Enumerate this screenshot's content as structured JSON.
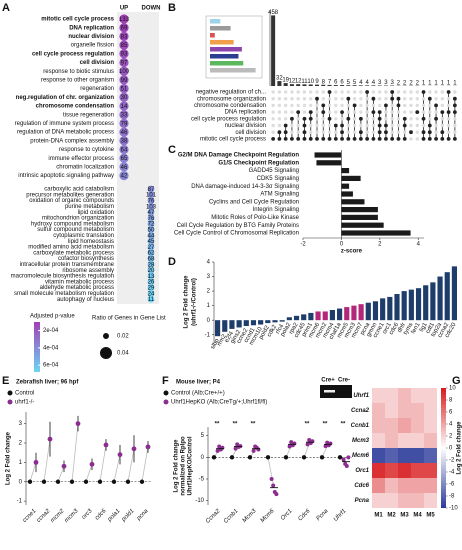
{
  "chart_data": [
    {
      "panel": "A",
      "type": "dotplot",
      "columns": [
        "UP",
        "DOWN"
      ],
      "terms": [
        "mitotic cell cycle process",
        "DNA replication",
        "nuclear division",
        "organelle fission",
        "cell cycle process regulation",
        "cell division",
        "response to biotic stimulus",
        "response to other organism",
        "regeneration",
        "neg.regulation of chr. organization",
        "chromosome condensation",
        "tissue regeneration",
        "regulation of immune system process",
        "regulation of DNA metabolic process",
        "protein-DNA complex assembly",
        "response to cytokine",
        "immune effector process",
        "chromatin localization",
        "intrinsic apoptotic signaling pathway",
        "carboxylic acid catabolism",
        "precursor metabolites generation",
        "oxidation of organic compounds",
        "purine metabolism",
        "lipid oxidation",
        "mitochondrion organization",
        "hydroxy compound metabolism",
        "sulfur compound metabolism",
        "cytoplasmic translation",
        "lipid homeostasis",
        "modified amino acid metabolism",
        "carboxylate metabolic process",
        "cofactor biosynthesis",
        "intracellular protein transmembrane",
        "ribosome assembly",
        "macromolecule biosynthesis regulation",
        "vitamin metabolic process",
        "aldehyde metabolic process",
        "small molecule metabolism regulation",
        "autophagy of nucleus"
      ],
      "column_index": [
        0,
        0,
        0,
        0,
        0,
        0,
        0,
        0,
        0,
        0,
        0,
        0,
        0,
        0,
        0,
        0,
        0,
        0,
        0,
        1,
        1,
        1,
        1,
        1,
        1,
        1,
        1,
        1,
        1,
        1,
        1,
        1,
        1,
        1,
        1,
        1,
        1,
        1,
        1
      ],
      "values": [
        133,
        69,
        83,
        85,
        93,
        97,
        100,
        99,
        51,
        30,
        14,
        33,
        79,
        46,
        38,
        64,
        65,
        46,
        42,
        87,
        101,
        76,
        103,
        47,
        76,
        72,
        50,
        44,
        45,
        27,
        62,
        68,
        28,
        20,
        13,
        26,
        29,
        24,
        11
      ],
      "bold": [
        true,
        true,
        true,
        false,
        true,
        true,
        false,
        false,
        false,
        true,
        true,
        false,
        false,
        false,
        false,
        false,
        false,
        false,
        false,
        false,
        false,
        false,
        false,
        false,
        false,
        false,
        false,
        false,
        false,
        false,
        false,
        false,
        false,
        false,
        false,
        false,
        false,
        false,
        false
      ],
      "color_range": [
        "#a23fb8",
        "#6ad6f5"
      ],
      "legend_color_title": "Adjusted p-value",
      "clim": [
        0.0001,
        0.00068
      ],
      "legend_color_ticks": [
        {
          "value": 0.0002,
          "label": "2e-04"
        },
        {
          "value": 0.0004,
          "label": "4e-04"
        },
        {
          "value": 0.0006,
          "label": "6e-04"
        }
      ],
      "legend_size_title": "Ratio of Genes in Gene List",
      "legend_size_ticks": [
        0.02,
        0.04
      ]
    },
    {
      "panel": "B",
      "type": "upset",
      "sets": [
        "negative regulation of ch...",
        "chromosome organization",
        "chromosome condensation",
        "DNA replication",
        "cell cycle process regulation",
        "nuclear division",
        "cell division",
        "mitotic cell cycle process"
      ],
      "set_colors": [
        "#9fd3ea",
        "#9a9a9a",
        "#d9534f",
        "#f0a04b",
        "#8e44ad",
        "#2c3e8f",
        "#5cb85c",
        "#bbbbbb"
      ],
      "set_sizes": [
        30,
        60,
        14,
        69,
        93,
        83,
        97,
        133
      ],
      "set_size_lim": [
        0,
        140
      ],
      "values": [
        458,
        32,
        19,
        12,
        12,
        11,
        10,
        9,
        8,
        7,
        6,
        6,
        5,
        5,
        4,
        4,
        4,
        3,
        3,
        3,
        2,
        2,
        2,
        2,
        1,
        1,
        1,
        1,
        1,
        1
      ],
      "ylim": [
        0,
        480
      ],
      "membership": [
        [
          7
        ],
        [
          6,
          7
        ],
        [
          5,
          6,
          7
        ],
        [
          4,
          7
        ],
        [
          3,
          7
        ],
        [
          4,
          5,
          6,
          7
        ],
        [
          3,
          4,
          7
        ],
        [
          1,
          7
        ],
        [
          2,
          3,
          7
        ],
        [
          0,
          4,
          7
        ],
        [
          5,
          7
        ],
        [
          3,
          5,
          6,
          7
        ],
        [
          1,
          4,
          7
        ],
        [
          2,
          7
        ],
        [
          4,
          6,
          7
        ],
        [
          0,
          7
        ],
        [
          1,
          3,
          7
        ],
        [
          3,
          4,
          5,
          6,
          7
        ],
        [
          2,
          5,
          6,
          7
        ],
        [
          0,
          1,
          7
        ],
        [
          1,
          2,
          7
        ],
        [
          4,
          5,
          7
        ],
        [
          6
        ],
        [
          3
        ],
        [
          0,
          4,
          6,
          7
        ],
        [
          1,
          5,
          6,
          7
        ],
        [
          2,
          4,
          7
        ],
        [
          3,
          6,
          7
        ],
        [
          0,
          3,
          7
        ],
        [
          1,
          2,
          3,
          7
        ]
      ]
    },
    {
      "panel": "C",
      "type": "bar",
      "orientation": "horizontal",
      "categories": [
        "G2/M DNA Damage Checkpoint Regulation",
        "G1/S Checkpoint Regulation",
        "GADD45 Signaling",
        "CDK5 Signaling",
        "DNA damage-induced 14-3-3σ Signaling",
        "ATM Signaling",
        "Cyclins and Cell Cycle Regulation",
        "Integrin Signaling",
        "Mitotic Roles of Polo-Like Kinase",
        "Cell Cycle Regulation by BTG Family Proteins",
        "Cell Cycle Control of Chromosomal Replication"
      ],
      "bold": [
        true,
        true,
        false,
        false,
        false,
        false,
        false,
        false,
        false,
        false,
        false
      ],
      "values": [
        -1.4,
        -1.3,
        0.4,
        1.0,
        0.4,
        0.6,
        1.2,
        1.9,
        1.9,
        2.2,
        3.6
      ],
      "color": "#1a1a1a",
      "xlim": [
        -2,
        4.3
      ],
      "xticks": [
        -2,
        0,
        2,
        4
      ],
      "xlabel": "z-score"
    },
    {
      "panel": "D",
      "type": "bar",
      "ylabel": [
        "Log 2 Fold change",
        "(uhrf1-/-/Control)"
      ],
      "categories": [
        "slbp",
        "rrm2",
        "e2f4",
        "gins2",
        "ccne2",
        "ccnd1",
        "mcm10",
        "pold2",
        "cdk2",
        "rfc4",
        "pola2",
        "rpa2",
        "cdc45",
        "prim1",
        "mcm6",
        "mcm2",
        "mcm4",
        "chaf1a",
        "mcm5",
        "mcm3",
        "mcm7",
        "pcna",
        "gmnn",
        "ccne1",
        "orc1",
        "cdc6",
        "dhfr",
        "tyms",
        "fen1",
        "lig1",
        "cdt1",
        "top2a",
        "ccna2",
        "cdc20"
      ],
      "values": [
        -1.1,
        -0.8,
        -0.6,
        -0.5,
        -0.4,
        -0.35,
        -0.3,
        -0.2,
        -0.15,
        -0.1,
        0.2,
        0.3,
        0.4,
        0.5,
        0.6,
        0.6,
        0.7,
        0.8,
        0.9,
        1.0,
        1.1,
        1.2,
        1.3,
        1.5,
        1.6,
        1.8,
        2.0,
        2.1,
        2.2,
        2.4,
        2.6,
        3.0,
        3.3,
        3.7
      ],
      "colors": [
        "#1f3d6b",
        "#1f3d6b",
        "#1f3d6b",
        "#1f3d6b",
        "#1f3d6b",
        "#1f3d6b",
        "#1f3d6b",
        "#1f3d6b",
        "#1f3d6b",
        "#1f3d6b",
        "#1f3d6b",
        "#1f3d6b",
        "#1f3d6b",
        "#1f3d6b",
        "#b3277a",
        "#b3277a",
        "#1f3d6b",
        "#1f3d6b",
        "#b3277a",
        "#b3277a",
        "#b3277a",
        "#1f3d6b",
        "#1f3d6b",
        "#1f3d6b",
        "#1f3d6b",
        "#1f3d6b",
        "#1f3d6b",
        "#1f3d6b",
        "#1f3d6b",
        "#1f3d6b",
        "#1f3d6b",
        "#1f3d6b",
        "#1f3d6b",
        "#1f3d6b"
      ],
      "ylim": [
        -1.5,
        4
      ],
      "yticks": [
        -1,
        0,
        1,
        2,
        3,
        4
      ]
    },
    {
      "panel": "E",
      "type": "dot",
      "title": "Zebrafish liver; 96 hpf",
      "ylabel": [
        "Log 2 Fold change"
      ],
      "categories": [
        "ccne1",
        "ccna2",
        "mcm2",
        "mcm3",
        "orc3",
        "cdc6",
        "pola1",
        "pold1",
        "pcna"
      ],
      "series": [
        {
          "name": "Control",
          "color": "#111111",
          "values": [
            0,
            0,
            0,
            0,
            0,
            0,
            0,
            0,
            0
          ]
        },
        {
          "name": "uhrf1-/-",
          "color": "#8b2e8f",
          "values": [
            1.0,
            2.2,
            0.8,
            3.0,
            0.9,
            1.9,
            1.4,
            1.7,
            1.8
          ],
          "errors": [
            0.5,
            0.9,
            0.3,
            0.4,
            0.3,
            0.3,
            0.5,
            0.7,
            0.3
          ]
        }
      ],
      "ylim": [
        -1.2,
        3.6
      ],
      "yticks": [
        -1,
        0,
        1,
        2,
        3
      ]
    },
    {
      "panel": "F",
      "type": "dot",
      "title": "Mouse liver; P4",
      "inset_labels": [
        "Cre+",
        "Cre-"
      ],
      "ylabel": [
        "Log 2 Fold change",
        "normalized on Rplpo",
        "Uhrf1HepKO/Control"
      ],
      "categories": [
        "Ccna2",
        "Ccnb1",
        "Mcm3",
        "Mcm6",
        "Orc1",
        "Cdc6",
        "Pcna",
        "Uhrf1"
      ],
      "series": [
        {
          "name": "Control (Alb;Cre+/+)",
          "color": "#111111",
          "values": [
            0,
            0,
            0,
            0,
            0,
            0,
            0,
            0
          ]
        },
        {
          "name": "Uhrf1HepKO (Alb;CreTg/+;Uhrf1fl/fl)",
          "color": "#8b2e8f",
          "values": [
            2,
            2.5,
            2,
            -7,
            3,
            3.5,
            3,
            -1
          ],
          "points": [
            [
              1.5,
              2.5,
              1.8,
              2.2
            ],
            [
              2,
              3,
              2.4,
              2.6
            ],
            [
              1.5,
              2.5,
              2.2,
              1.8
            ],
            [
              -5,
              -6.5,
              -8,
              -8.5
            ],
            [
              2.5,
              3.5,
              2.8,
              3.2
            ],
            [
              3,
              4,
              3.3,
              3.7
            ],
            [
              2.6,
              3.4,
              2.8,
              3.2
            ],
            [
              -0.5,
              -1.5,
              -2,
              0
            ]
          ]
        }
      ],
      "significance": [
        "**",
        "**",
        "**",
        null,
        null,
        "**",
        "**",
        "**"
      ],
      "ylim": [
        -11,
        7
      ],
      "yticks": [
        -10,
        -5,
        0,
        5
      ]
    },
    {
      "panel": "G",
      "type": "heatmap",
      "rows": [
        "Uhrf1",
        "Ccna2",
        "Ccnb1",
        "Mcm3",
        "Mcm6",
        "Orc1",
        "Cdc6",
        "Pcna"
      ],
      "columns": [
        "M1",
        "M2",
        "M3",
        "M4",
        "M5"
      ],
      "values": [
        [
          2,
          2,
          3,
          2,
          2
        ],
        [
          3,
          2,
          3,
          3,
          2
        ],
        [
          3,
          3,
          4,
          3,
          2
        ],
        [
          2,
          3,
          2,
          2,
          3
        ],
        [
          -9,
          -8,
          -9,
          -9,
          -8
        ],
        [
          9,
          8,
          9,
          8,
          8
        ],
        [
          5,
          3,
          4,
          4,
          4
        ],
        [
          2,
          2,
          3,
          3,
          2
        ]
      ],
      "clim": [
        -10,
        10
      ],
      "cticks": [
        10,
        8,
        6,
        4,
        2,
        0,
        -2,
        -4,
        -6,
        -8,
        -10
      ],
      "colorbar_label": "Log 2 Fold change",
      "colors": [
        "#2b3a9a",
        "#ffffff",
        "#d7191c"
      ]
    }
  ]
}
